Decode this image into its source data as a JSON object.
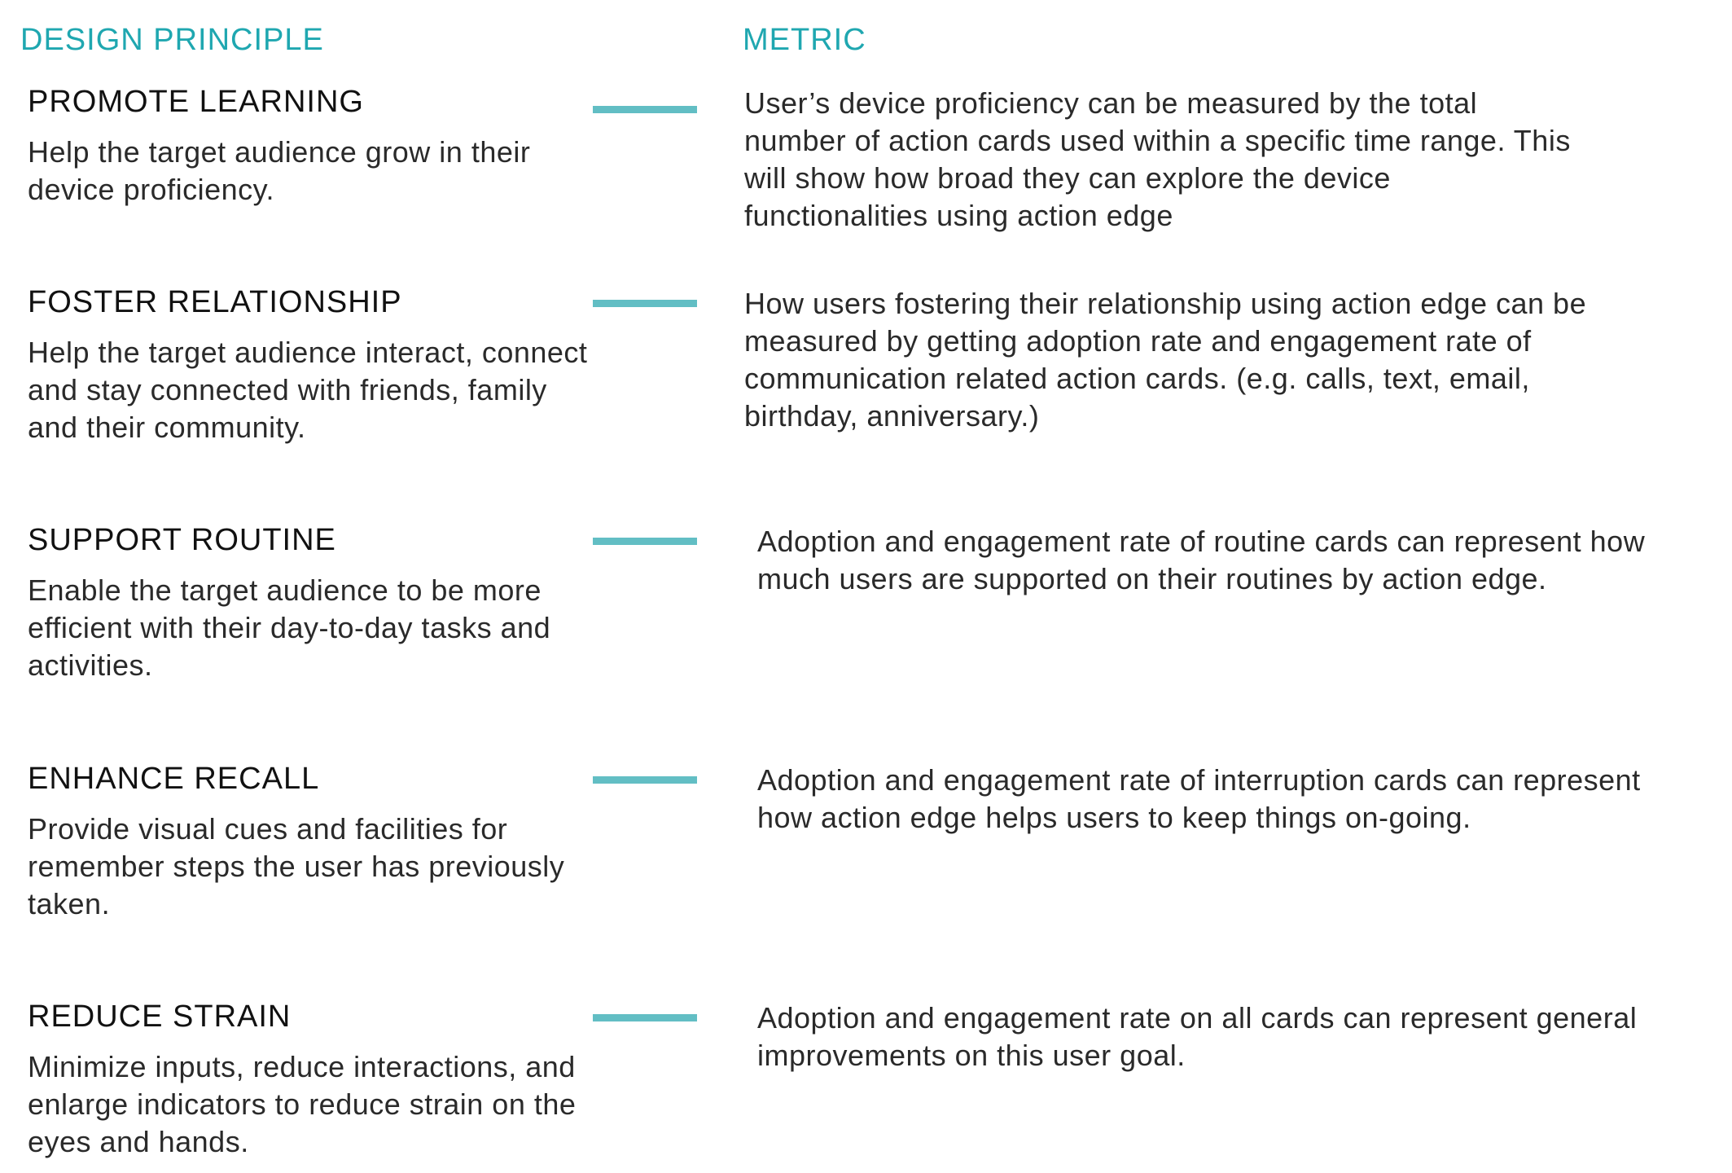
{
  "headers": {
    "principle": "DESIGN PRINCIPLE",
    "metric": "METRIC"
  },
  "accent_color": "#62bec4",
  "header_color": "#1fa7b0",
  "rows": [
    {
      "title": "PROMOTE LEARNING",
      "description": "Help the target audience grow in their device proficiency.",
      "metric": "User’s device proficiency can be measured by the total number of action cards used within a specific time range. This will show how broad they can explore the device functionalities using action  edge"
    },
    {
      "title": "FOSTER RELATIONSHIP",
      "description": "Help the target audience interact, connect and stay connected with friends, family and their community.",
      "metric": "How users fostering their relationship using action edge can be measured by getting adoption rate and engagement rate of communication related action cards. (e.g. calls, text, email, birthday, anniversary.)"
    },
    {
      "title": "SUPPORT ROUTINE",
      "description": "Enable the target audience to be more efficient with their day-to-day tasks and activities.",
      "metric": "Adoption and engagement rate of routine cards can represent how much users are supported on their routines by action edge."
    },
    {
      "title": "ENHANCE RECALL",
      "description": "Provide visual cues and facilities for remember steps the user has previously taken.",
      "metric": "Adoption and engagement rate of interruption cards can represent how action edge helps users to keep things on-going."
    },
    {
      "title": "REDUCE STRAIN",
      "description": "Minimize inputs, reduce interactions, and enlarge indicators to reduce strain on the eyes and hands.",
      "metric": "Adoption and engagement rate on all cards can represent general improvements on this user goal."
    }
  ]
}
